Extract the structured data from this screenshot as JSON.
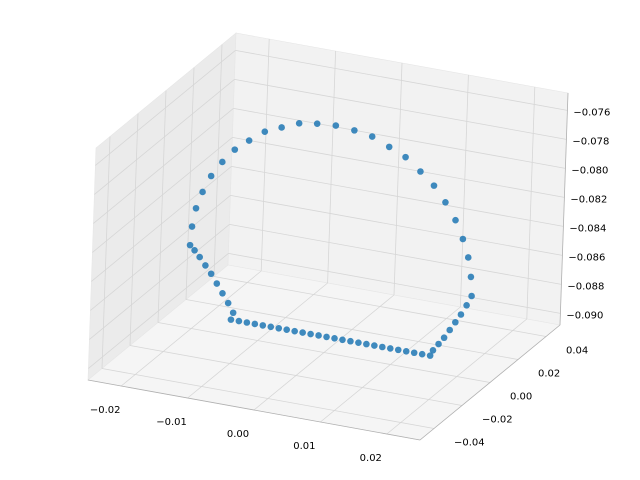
{
  "chart_data": {
    "type": "scatter3d",
    "color": "#1f77b4",
    "grid": true,
    "x": [
      -0.0206,
      -0.0204,
      -0.0199,
      -0.019,
      -0.0178,
      -0.0162,
      -0.0144,
      -0.0123,
      -0.01,
      -0.0075,
      -0.0049,
      -0.0022,
      0.0006,
      0.0034,
      0.0061,
      0.0087,
      0.0112,
      0.0135,
      0.0156,
      0.0174,
      0.019,
      0.0202,
      0.0211,
      0.0216,
      0.0218,
      0.0211,
      0.0203,
      0.0195,
      0.0187,
      0.0179,
      0.0171,
      0.0163,
      0.0159,
      0.0147,
      0.0135,
      0.0123,
      0.0111,
      0.0099,
      0.0087,
      0.0075,
      0.0063,
      0.0051,
      0.0039,
      0.0027,
      0.0015,
      0.0003,
      -0.0009,
      -0.0021,
      -0.0033,
      -0.0045,
      -0.0057,
      -0.0069,
      -0.0081,
      -0.0093,
      -0.0105,
      -0.0117,
      -0.0129,
      -0.0141,
      -0.0138,
      -0.0146,
      -0.0155,
      -0.0164,
      -0.0173,
      -0.0182,
      -0.0191,
      -0.0199
    ],
    "y": [
      0,
      0,
      0,
      0,
      0,
      0,
      0,
      0,
      0,
      0,
      0,
      0,
      0,
      0,
      0,
      0,
      0,
      0,
      0,
      0,
      0,
      0,
      0,
      0,
      0,
      0,
      0,
      0,
      0,
      0,
      0,
      0,
      0,
      0,
      0,
      0,
      0,
      0,
      0,
      0,
      0,
      0,
      0,
      0,
      0,
      0,
      0,
      0,
      0,
      0,
      0,
      0,
      0,
      0,
      0,
      0,
      0,
      0,
      0,
      0,
      0,
      0,
      0,
      0,
      0,
      0
    ],
    "z": [
      -0.0851,
      -0.0838,
      -0.0825,
      -0.0813,
      -0.0801,
      -0.079,
      -0.078,
      -0.0772,
      -0.0764,
      -0.0759,
      -0.0754,
      -0.0752,
      -0.0751,
      -0.0752,
      -0.0754,
      -0.0759,
      -0.0764,
      -0.0772,
      -0.078,
      -0.079,
      -0.0801,
      -0.0813,
      -0.0825,
      -0.0838,
      -0.0851,
      -0.0858,
      -0.0865,
      -0.0871,
      -0.0877,
      -0.0883,
      -0.0888,
      -0.0893,
      -0.0897,
      -0.0897,
      -0.0897,
      -0.0897,
      -0.0897,
      -0.0897,
      -0.0897,
      -0.0897,
      -0.0897,
      -0.0897,
      -0.0897,
      -0.0897,
      -0.0897,
      -0.0897,
      -0.0897,
      -0.0897,
      -0.0897,
      -0.0897,
      -0.0897,
      -0.0897,
      -0.0897,
      -0.0897,
      -0.0897,
      -0.0897,
      -0.0897,
      -0.0897,
      -0.0892,
      -0.0886,
      -0.088,
      -0.0874,
      -0.0868,
      -0.0863,
      -0.0858,
      -0.0854
    ],
    "xlim": [
      -0.025,
      0.025
    ],
    "ylim": [
      -0.05,
      0.05
    ],
    "zlim": [
      -0.0908,
      -0.0748
    ],
    "xticks": [
      {
        "value": -0.02,
        "label": "−0.02"
      },
      {
        "value": -0.01,
        "label": "−0.01"
      },
      {
        "value": 0,
        "label": "0.00"
      },
      {
        "value": 0.01,
        "label": "0.01"
      },
      {
        "value": 0.02,
        "label": "0.02"
      }
    ],
    "yticks": [
      {
        "value": -0.04,
        "label": "−0.04"
      },
      {
        "value": -0.02,
        "label": "−0.02"
      },
      {
        "value": 0,
        "label": "0.00"
      },
      {
        "value": 0.02,
        "label": "0.02"
      },
      {
        "value": 0.04,
        "label": "0.04"
      }
    ],
    "zticks": [
      {
        "value": -0.09,
        "label": "−0.090"
      },
      {
        "value": -0.088,
        "label": "−0.088"
      },
      {
        "value": -0.086,
        "label": "−0.086"
      },
      {
        "value": -0.084,
        "label": "−0.084"
      },
      {
        "value": -0.082,
        "label": "−0.082"
      },
      {
        "value": -0.08,
        "label": "−0.080"
      },
      {
        "value": -0.078,
        "label": "−0.078"
      },
      {
        "value": -0.076,
        "label": "−0.076"
      }
    ]
  }
}
